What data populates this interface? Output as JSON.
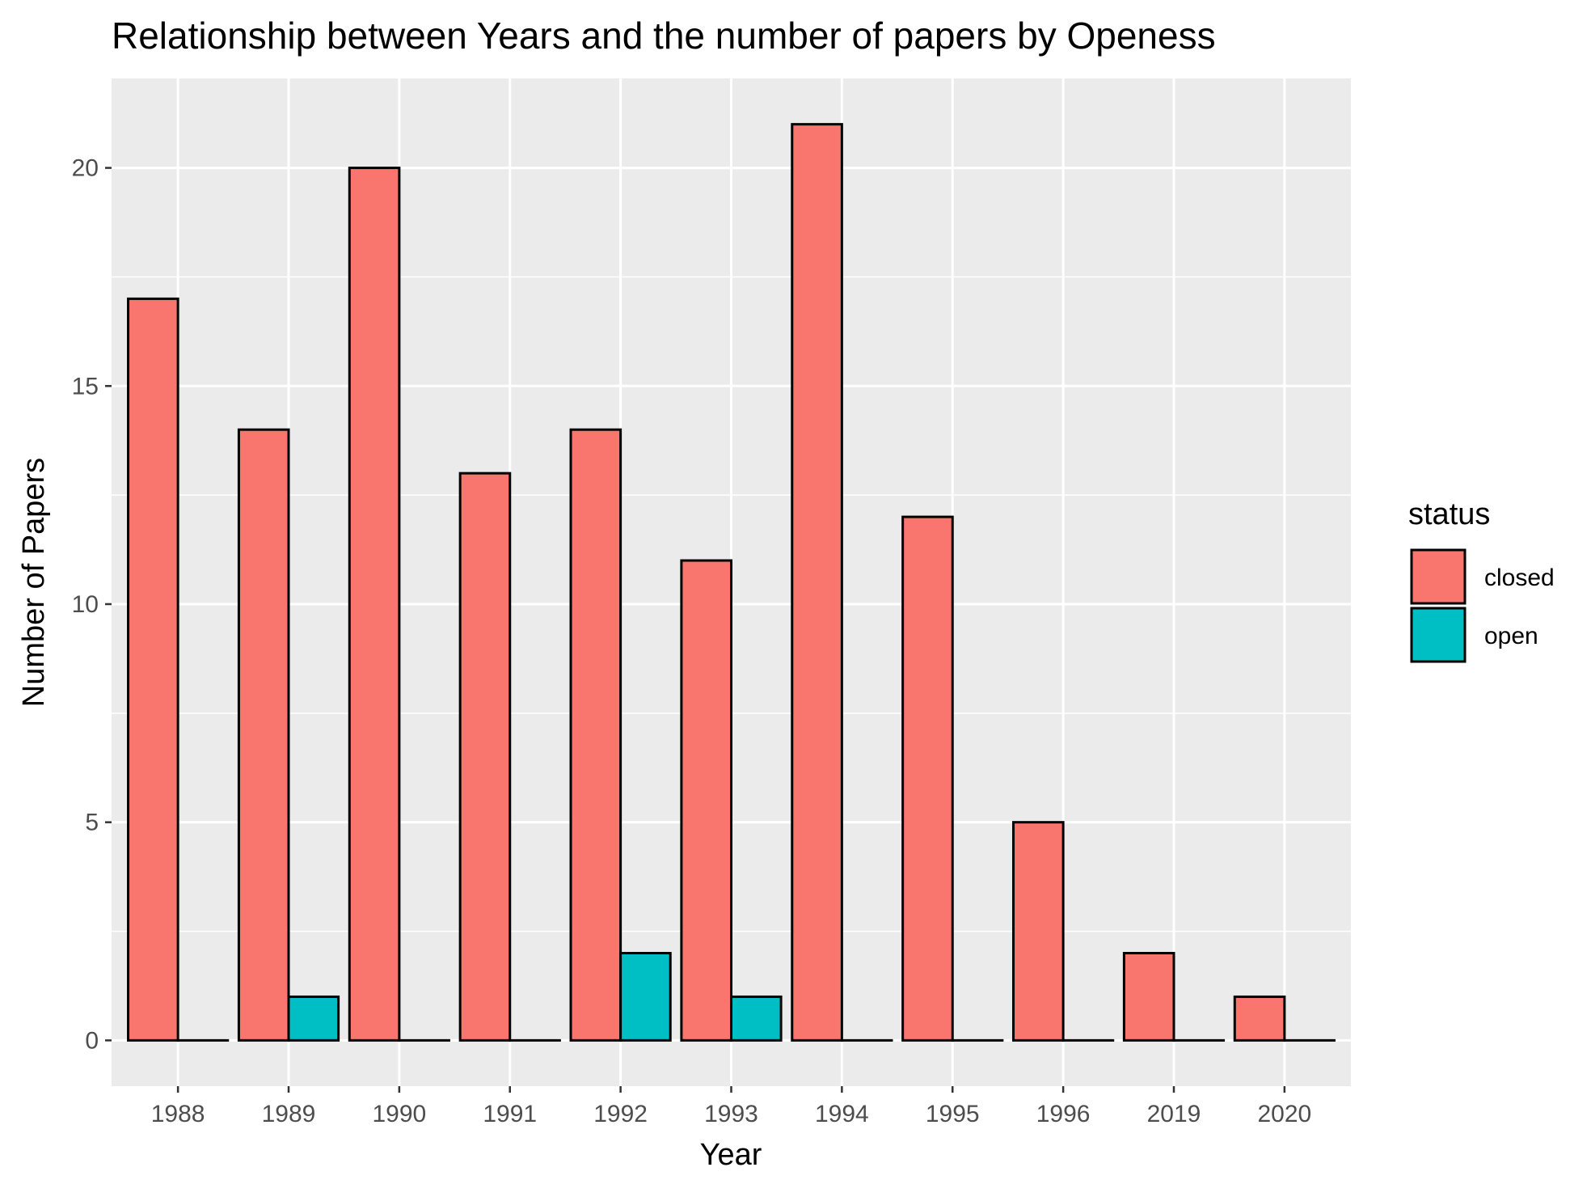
{
  "chart_data": {
    "type": "bar",
    "title": "Relationship between Years and the number of papers by Openess",
    "xlabel": "Year",
    "ylabel": "Number of Papers",
    "categories": [
      "1988",
      "1989",
      "1990",
      "1991",
      "1992",
      "1993",
      "1994",
      "1995",
      "1996",
      "2019",
      "2020"
    ],
    "series": [
      {
        "name": "closed",
        "color": "#F8766D",
        "values": [
          17,
          14,
          20,
          13,
          14,
          11,
          21,
          12,
          5,
          2,
          1
        ]
      },
      {
        "name": "open",
        "color": "#00BFC4",
        "values": [
          0,
          1,
          0,
          0,
          2,
          1,
          0,
          0,
          0,
          0,
          0
        ]
      }
    ],
    "ylim": [
      -1.05,
      22.05
    ],
    "yticks": [
      0,
      5,
      10,
      15,
      20
    ],
    "grid": true,
    "panel_background": "#EBEBEB",
    "bar_outline": "#000000",
    "legend": {
      "title": "status",
      "position": "right"
    }
  }
}
